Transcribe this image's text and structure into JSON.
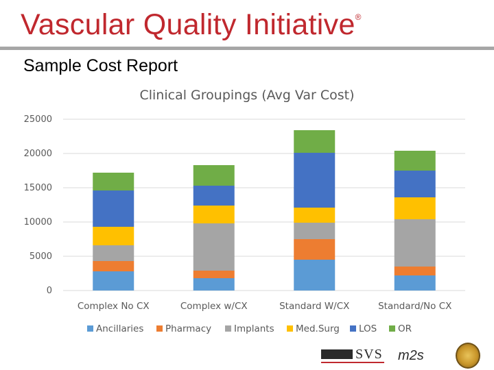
{
  "header": {
    "brand": "Vascular Quality Initiative",
    "brand_mark": "®",
    "subtitle": "Sample Cost Report"
  },
  "chart_data": {
    "type": "bar",
    "stacked": true,
    "title": "Clinical Groupings (Avg Var Cost)",
    "xlabel": "",
    "ylabel": "",
    "ylim": [
      0,
      25000
    ],
    "yticks": [
      0,
      5000,
      10000,
      15000,
      20000,
      25000
    ],
    "grid": true,
    "legend": "bottom",
    "categories": [
      "Complex No CX",
      "Complex w/CX",
      "Standard W/CX",
      "Standard/No CX"
    ],
    "series": [
      {
        "name": "Ancillaries",
        "color": "#5b9bd5",
        "values": [
          2800,
          1800,
          4500,
          2200
        ]
      },
      {
        "name": "Pharmacy",
        "color": "#ed7d31",
        "values": [
          1500,
          1100,
          3000,
          1300
        ]
      },
      {
        "name": "Implants",
        "color": "#a5a5a5",
        "values": [
          2300,
          6900,
          2400,
          6900
        ]
      },
      {
        "name": "Med.Surg",
        "color": "#ffc000",
        "values": [
          2700,
          2600,
          2200,
          3200
        ]
      },
      {
        "name": "LOS",
        "color": "#4472c4",
        "values": [
          5300,
          2900,
          8000,
          3900
        ]
      },
      {
        "name": "OR",
        "color": "#70ad47",
        "values": [
          2600,
          3000,
          3300,
          2900
        ]
      }
    ]
  },
  "footer": {
    "logo_svs": "SVS",
    "logo_m2s": "m2s"
  }
}
